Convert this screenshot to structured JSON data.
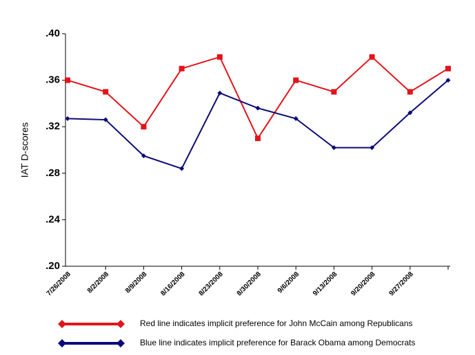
{
  "chart_data": {
    "type": "line",
    "y_label": "IAT D-scores",
    "categories": [
      "7/26/2008",
      "8/2/2008",
      "8/9/2008",
      "8/16/2008",
      "8/23/2008",
      "8/30/2008",
      "9/6/2008",
      "9/13/2008",
      "9/20/2008",
      "9/27/2008",
      null
    ],
    "series": [
      {
        "name": "Red line indicates implicit preference for John McCain among Republicans",
        "color": "#e3141b",
        "marker": "square",
        "values": [
          0.36,
          0.35,
          0.32,
          0.37,
          0.38,
          0.31,
          0.36,
          0.35,
          0.38,
          0.35,
          0.37
        ]
      },
      {
        "name": "Blue line indicates implicit preference for Barack Obama among Democrats",
        "color": "#0a0a78",
        "marker": "diamond",
        "values": [
          0.327,
          0.326,
          0.295,
          0.284,
          0.349,
          0.336,
          0.327,
          0.302,
          0.302,
          0.332,
          0.36
        ]
      }
    ],
    "ylim": [
      0.2,
      0.4
    ],
    "yticks": [
      {
        "value": 0.2,
        "label": ".20"
      },
      {
        "value": 0.24,
        "label": ".24"
      },
      {
        "value": 0.28,
        "label": ".28"
      },
      {
        "value": 0.32,
        "label": ".32"
      },
      {
        "value": 0.36,
        "label": ".36"
      },
      {
        "value": 0.4,
        "label": ".40"
      }
    ],
    "grid": false,
    "legend": "bottom"
  }
}
